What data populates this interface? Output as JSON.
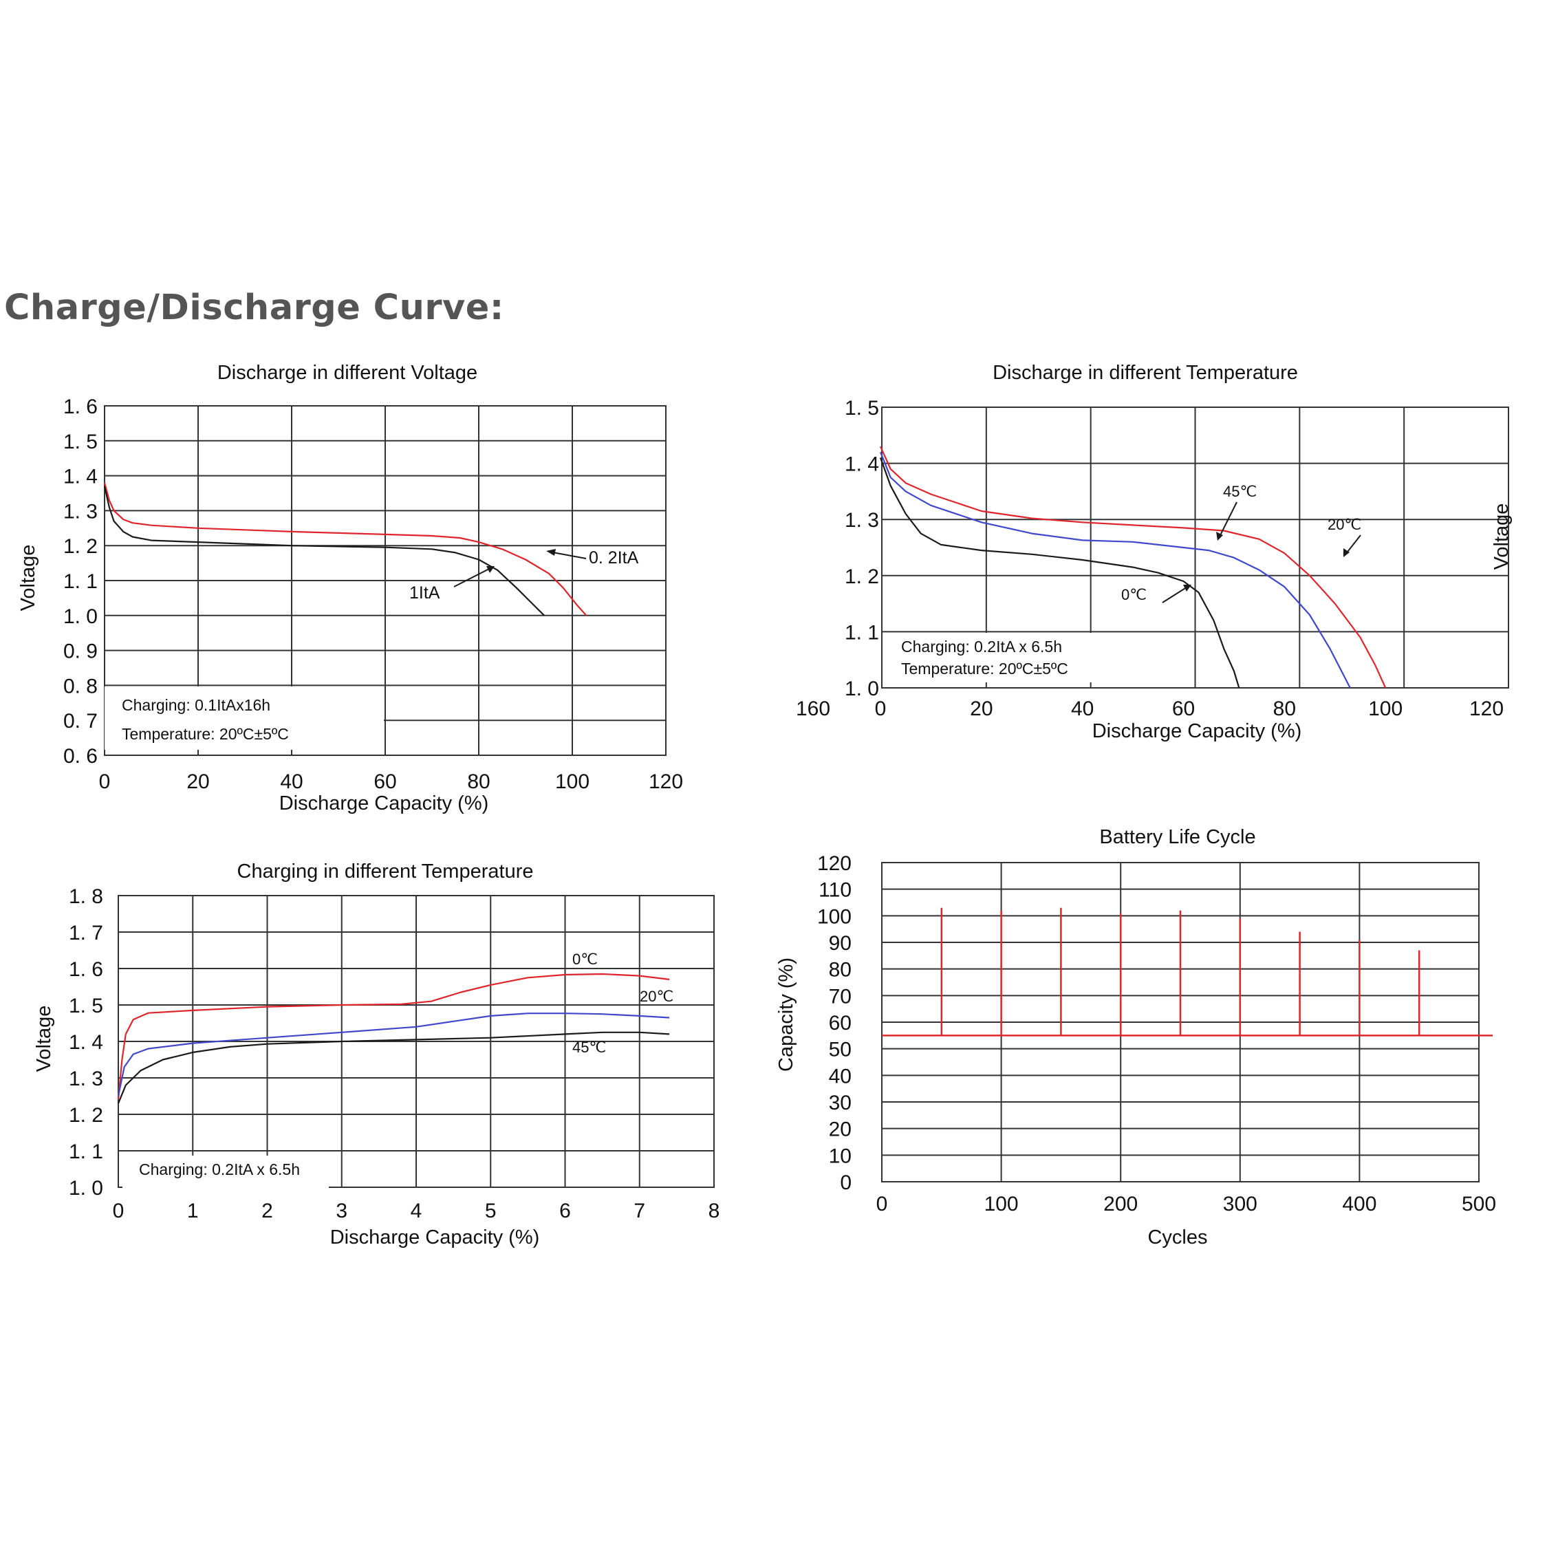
{
  "heading": "Charge/Discharge Curve:",
  "colors": {
    "red": "#e0242b",
    "black": "#1a1a1a",
    "blue": "#3f48cc",
    "grid": "#333333"
  },
  "chart_data": [
    {
      "type": "line",
      "title": "Discharge in different Voltage",
      "xlabel": "Discharge Capacity (%)",
      "ylabel": "Voltage",
      "xlim": [
        0,
        120
      ],
      "ylim": [
        0.6,
        1.6
      ],
      "x_ticks": [
        "0",
        "20",
        "40",
        "60",
        "80",
        "100",
        "120"
      ],
      "y_ticks": [
        "1. 6",
        "1. 5",
        "1. 4",
        "1. 3",
        "1. 2",
        "1. 1",
        "1. 0",
        "0. 9",
        "0. 8",
        "0. 7",
        "0. 6"
      ],
      "note": [
        "Charging: 0.1ItAx16h",
        "Temperature: 20ºC±5ºC"
      ],
      "series": [
        {
          "name": "0. 2ItA",
          "color": "#e0242b",
          "points": [
            [
              0,
              1.38
            ],
            [
              1,
              1.33
            ],
            [
              2,
              1.3
            ],
            [
              4,
              1.275
            ],
            [
              6,
              1.265
            ],
            [
              10,
              1.258
            ],
            [
              20,
              1.25
            ],
            [
              40,
              1.24
            ],
            [
              60,
              1.232
            ],
            [
              70,
              1.228
            ],
            [
              76,
              1.222
            ],
            [
              80,
              1.21
            ],
            [
              85,
              1.19
            ],
            [
              90,
              1.16
            ],
            [
              95,
              1.12
            ],
            [
              98,
              1.08
            ],
            [
              101,
              1.03
            ],
            [
              103,
              1.0
            ]
          ]
        },
        {
          "name": "1ItA",
          "color": "#1a1a1a",
          "points": [
            [
              0,
              1.37
            ],
            [
              1,
              1.31
            ],
            [
              2,
              1.27
            ],
            [
              4,
              1.24
            ],
            [
              6,
              1.225
            ],
            [
              10,
              1.215
            ],
            [
              20,
              1.21
            ],
            [
              40,
              1.2
            ],
            [
              60,
              1.195
            ],
            [
              70,
              1.19
            ],
            [
              75,
              1.18
            ],
            [
              80,
              1.16
            ],
            [
              84,
              1.13
            ],
            [
              88,
              1.08
            ],
            [
              91,
              1.04
            ],
            [
              94,
              1.0
            ]
          ]
        }
      ]
    },
    {
      "type": "line",
      "title": "Discharge in different Temperature",
      "xlabel": "Discharge Capacity (%)",
      "ylabel": "Voltage",
      "xlim": [
        0,
        120
      ],
      "ylim": [
        1.0,
        1.5
      ],
      "x_ticks": [
        "160",
        "0",
        "20",
        "40",
        "60",
        "80",
        "100",
        "120"
      ],
      "y_ticks": [
        "1. 5",
        "1. 4",
        "1. 3",
        "1. 2",
        "1. 1",
        "1. 0"
      ],
      "note": [
        "Charging: 0.2ItA x 6.5h",
        "Temperature: 20ºC±5ºC"
      ],
      "series": [
        {
          "name": "20℃",
          "color": "#e0242b",
          "points": [
            [
              0,
              1.43
            ],
            [
              2,
              1.39
            ],
            [
              5,
              1.365
            ],
            [
              10,
              1.345
            ],
            [
              20,
              1.315
            ],
            [
              30,
              1.302
            ],
            [
              40,
              1.295
            ],
            [
              50,
              1.29
            ],
            [
              60,
              1.285
            ],
            [
              68,
              1.28
            ],
            [
              75,
              1.265
            ],
            [
              80,
              1.24
            ],
            [
              85,
              1.2
            ],
            [
              90,
              1.15
            ],
            [
              95,
              1.09
            ],
            [
              98,
              1.04
            ],
            [
              100,
              1.0
            ]
          ]
        },
        {
          "name": "45℃",
          "color": "#3f48cc",
          "points": [
            [
              0,
              1.42
            ],
            [
              2,
              1.375
            ],
            [
              5,
              1.35
            ],
            [
              10,
              1.325
            ],
            [
              20,
              1.295
            ],
            [
              30,
              1.275
            ],
            [
              40,
              1.263
            ],
            [
              50,
              1.26
            ],
            [
              60,
              1.25
            ],
            [
              65,
              1.245
            ],
            [
              70,
              1.232
            ],
            [
              75,
              1.21
            ],
            [
              80,
              1.18
            ],
            [
              85,
              1.13
            ],
            [
              89,
              1.07
            ],
            [
              93,
              1.0
            ]
          ]
        },
        {
          "name": "0℃",
          "color": "#1a1a1a",
          "points": [
            [
              0,
              1.41
            ],
            [
              2,
              1.36
            ],
            [
              5,
              1.31
            ],
            [
              8,
              1.275
            ],
            [
              12,
              1.255
            ],
            [
              20,
              1.245
            ],
            [
              30,
              1.238
            ],
            [
              40,
              1.228
            ],
            [
              50,
              1.215
            ],
            [
              55,
              1.205
            ],
            [
              60,
              1.19
            ],
            [
              63,
              1.17
            ],
            [
              66,
              1.12
            ],
            [
              68,
              1.07
            ],
            [
              70,
              1.03
            ],
            [
              71,
              1.0
            ]
          ]
        }
      ]
    },
    {
      "type": "line",
      "title": "Charging in different Temperature",
      "xlabel": "Discharge Capacity (%)",
      "ylabel": "Voltage",
      "xlim": [
        0,
        8
      ],
      "ylim": [
        1.0,
        1.8
      ],
      "x_ticks": [
        "0",
        "1",
        "2",
        "3",
        "4",
        "5",
        "6",
        "7",
        "8"
      ],
      "y_ticks": [
        "1. 8",
        "1. 7",
        "1. 6",
        "1. 5",
        "1. 4",
        "1. 3",
        "1. 2",
        "1. 1",
        "1. 0"
      ],
      "note": [
        "Charging: 0.2ItA x 6.5h"
      ],
      "series": [
        {
          "name": "0℃",
          "color": "#e0242b",
          "points": [
            [
              0,
              1.24
            ],
            [
              0.05,
              1.35
            ],
            [
              0.1,
              1.42
            ],
            [
              0.2,
              1.46
            ],
            [
              0.4,
              1.478
            ],
            [
              1,
              1.485
            ],
            [
              2,
              1.495
            ],
            [
              3,
              1.5
            ],
            [
              3.8,
              1.502
            ],
            [
              4.2,
              1.51
            ],
            [
              4.6,
              1.535
            ],
            [
              5,
              1.555
            ],
            [
              5.5,
              1.575
            ],
            [
              6,
              1.583
            ],
            [
              6.5,
              1.585
            ],
            [
              7,
              1.58
            ],
            [
              7.4,
              1.57
            ]
          ]
        },
        {
          "name": "20℃",
          "color": "#3f48cc",
          "points": [
            [
              0,
              1.25
            ],
            [
              0.08,
              1.33
            ],
            [
              0.2,
              1.365
            ],
            [
              0.4,
              1.38
            ],
            [
              1,
              1.395
            ],
            [
              2,
              1.41
            ],
            [
              3,
              1.425
            ],
            [
              4,
              1.44
            ],
            [
              4.5,
              1.455
            ],
            [
              5,
              1.47
            ],
            [
              5.5,
              1.477
            ],
            [
              6,
              1.477
            ],
            [
              6.5,
              1.475
            ],
            [
              7,
              1.47
            ],
            [
              7.4,
              1.465
            ]
          ]
        },
        {
          "name": "45℃",
          "color": "#1a1a1a",
          "points": [
            [
              0,
              1.23
            ],
            [
              0.1,
              1.28
            ],
            [
              0.3,
              1.32
            ],
            [
              0.6,
              1.35
            ],
            [
              1,
              1.37
            ],
            [
              1.5,
              1.385
            ],
            [
              2,
              1.393
            ],
            [
              3,
              1.4
            ],
            [
              4,
              1.405
            ],
            [
              5,
              1.41
            ],
            [
              6,
              1.42
            ],
            [
              6.5,
              1.425
            ],
            [
              7,
              1.425
            ],
            [
              7.4,
              1.42
            ]
          ]
        }
      ]
    },
    {
      "type": "bar",
      "title": "Battery Life Cycle",
      "xlabel": "Cycles",
      "ylabel": "Capacity (%)",
      "xlim": [
        0,
        500
      ],
      "ylim": [
        0,
        120
      ],
      "x_ticks": [
        "0",
        "100",
        "200",
        "300",
        "400",
        "500"
      ],
      "y_ticks": [
        "120",
        "110",
        "100",
        "90",
        "80",
        "70",
        "60",
        "50",
        "40",
        "30",
        "20",
        "10",
        "0"
      ],
      "baseline": 55,
      "color": "#e0242b",
      "x": [
        50,
        100,
        150,
        200,
        250,
        300,
        350,
        400,
        450
      ],
      "values": [
        103,
        102,
        103,
        101,
        102,
        99,
        94,
        91,
        87
      ]
    }
  ]
}
